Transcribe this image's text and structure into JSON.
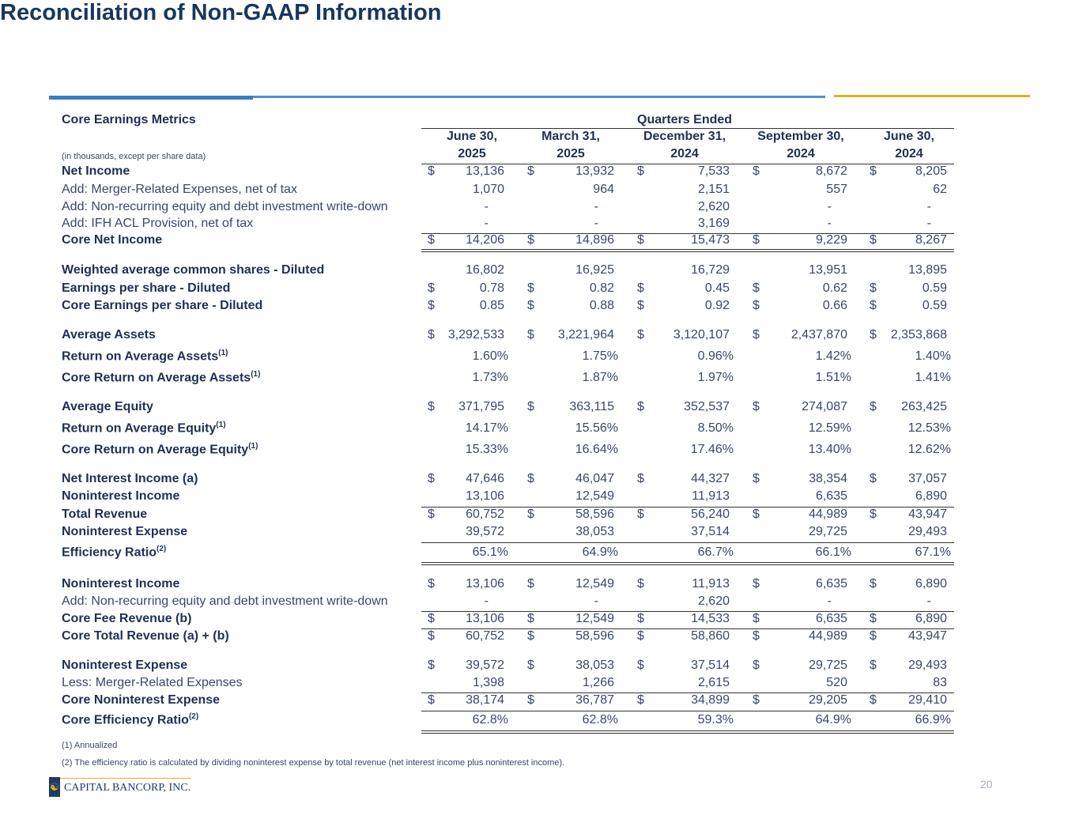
{
  "title": "Reconciliation of Non-GAAP Information",
  "section_title": "Core Earnings Metrics",
  "units_note": "(in thousands, except per share data)",
  "group_header": "Quarters Ended",
  "columns": [
    {
      "line1": "June 30,",
      "line2": "2025"
    },
    {
      "line1": "March 31,",
      "line2": "2025"
    },
    {
      "line1": "December 31,",
      "line2": "2024"
    },
    {
      "line1": "September 30,",
      "line2": "2024"
    },
    {
      "line1": "June 30,",
      "line2": "2024"
    }
  ],
  "rows": [
    {
      "label": "Net Income",
      "bold": true,
      "dollar": true,
      "values": [
        "13,136",
        "13,932",
        "7,533",
        "8,672",
        "8,205"
      ]
    },
    {
      "label": "Add: Merger-Related Expenses, net of tax",
      "values": [
        "1,070",
        "964",
        "2,151",
        "557",
        "62"
      ]
    },
    {
      "label": "Add: Non-recurring equity and debt investment write-down",
      "values": [
        "-",
        "-",
        "2,620",
        "-",
        "-"
      ]
    },
    {
      "label": "Add: IFH ACL Provision, net of tax",
      "values": [
        "-",
        "-",
        "3,169",
        "-",
        "-"
      ]
    },
    {
      "label": "Core Net Income",
      "bold": true,
      "dollar": true,
      "values": [
        "14,206",
        "14,896",
        "15,473",
        "9,229",
        "8,267"
      ]
    },
    {
      "label": "Weighted average common shares - Diluted",
      "bold": true,
      "values": [
        "16,802",
        "16,925",
        "16,729",
        "13,951",
        "13,895"
      ]
    },
    {
      "label": "Earnings per share - Diluted",
      "bold": true,
      "dollar": true,
      "values": [
        "0.78",
        "0.82",
        "0.45",
        "0.62",
        "0.59"
      ]
    },
    {
      "label": "Core Earnings per share - Diluted",
      "bold": true,
      "dollar": true,
      "values": [
        "0.85",
        "0.88",
        "0.92",
        "0.66",
        "0.59"
      ]
    },
    {
      "label": "Average Assets",
      "bold": true,
      "dollar": true,
      "values": [
        "3,292,533",
        "3,221,964",
        "3,120,107",
        "2,437,870",
        "2,353,868"
      ]
    },
    {
      "label": "Return on Average Assets",
      "sup": "(1)",
      "bold": true,
      "pct": true,
      "values": [
        "1.60%",
        "1.75%",
        "0.96%",
        "1.42%",
        "1.40%"
      ]
    },
    {
      "label": "Core Return on Average Assets",
      "sup": "(1)",
      "bold": true,
      "pct": true,
      "values": [
        "1.73%",
        "1.87%",
        "1.97%",
        "1.51%",
        "1.41%"
      ]
    },
    {
      "label": "Average Equity",
      "bold": true,
      "dollar": true,
      "values": [
        "371,795",
        "363,115",
        "352,537",
        "274,087",
        "263,425"
      ]
    },
    {
      "label": "Return on Average Equity",
      "sup": "(1)",
      "bold": true,
      "pct": true,
      "values": [
        "14.17%",
        "15.56%",
        "8.50%",
        "12.59%",
        "12.53%"
      ]
    },
    {
      "label": "Core Return on Average Equity",
      "sup": "(1)",
      "bold": true,
      "pct": true,
      "values": [
        "15.33%",
        "16.64%",
        "17.46%",
        "13.40%",
        "12.62%"
      ]
    },
    {
      "label": "Net Interest Income (a)",
      "bold": true,
      "dollar": true,
      "values": [
        "47,646",
        "46,047",
        "44,327",
        "38,354",
        "37,057"
      ]
    },
    {
      "label": "Noninterest Income",
      "bold": true,
      "values": [
        "13,106",
        "12,549",
        "11,913",
        "6,635",
        "6,890"
      ]
    },
    {
      "label": "Total Revenue",
      "bold": true,
      "dollar": true,
      "values": [
        "60,752",
        "58,596",
        "56,240",
        "44,989",
        "43,947"
      ]
    },
    {
      "label": "Noninterest Expense",
      "bold": true,
      "values": [
        "39,572",
        "38,053",
        "37,514",
        "29,725",
        "29,493"
      ]
    },
    {
      "label": "Efficiency Ratio",
      "sup": "(2)",
      "bold": true,
      "pct": true,
      "values": [
        "65.1%",
        "64.9%",
        "66.7%",
        "66.1%",
        "67.1%"
      ]
    },
    {
      "label": "Noninterest Income",
      "bold": true,
      "dollar": true,
      "values": [
        "13,106",
        "12,549",
        "11,913",
        "6,635",
        "6,890"
      ]
    },
    {
      "label": "Add: Non-recurring equity and debt investment write-down",
      "values": [
        "-",
        "-",
        "2,620",
        "-",
        "-"
      ]
    },
    {
      "label": "Core Fee Revenue (b)",
      "bold": true,
      "dollar": true,
      "values": [
        "13,106",
        "12,549",
        "14,533",
        "6,635",
        "6,890"
      ]
    },
    {
      "label": "Core Total Revenue (a) + (b)",
      "bold": true,
      "dollar": true,
      "values": [
        "60,752",
        "58,596",
        "58,860",
        "44,989",
        "43,947"
      ]
    },
    {
      "label": "Noninterest Expense",
      "bold": true,
      "dollar": true,
      "values": [
        "39,572",
        "38,053",
        "37,514",
        "29,725",
        "29,493"
      ]
    },
    {
      "label": "Less: Merger-Related Expenses",
      "values": [
        "1,398",
        "1,266",
        "2,615",
        "520",
        "83"
      ]
    },
    {
      "label": "Core Noninterest Expense",
      "bold": true,
      "dollar": true,
      "values": [
        "38,174",
        "36,787",
        "34,899",
        "29,205",
        "29,410"
      ]
    },
    {
      "label": "Core Efficiency Ratio",
      "sup": "(2)",
      "bold": true,
      "pct": true,
      "values": [
        "62.8%",
        "62.8%",
        "59.3%",
        "64.9%",
        "66.9%"
      ]
    }
  ],
  "currency_symbol": "$",
  "footnotes": [
    "(1) Annualized",
    "(2) The efficiency ratio is calculated by dividing noninterest expense by total revenue (net interest income plus noninterest income)."
  ],
  "logo_text": "CAPITAL BANCORP, INC.",
  "page_number": "20",
  "colors": {
    "title": "#17375e",
    "accent_blue": "#3d85c6",
    "accent_gold": "#e0b020"
  }
}
